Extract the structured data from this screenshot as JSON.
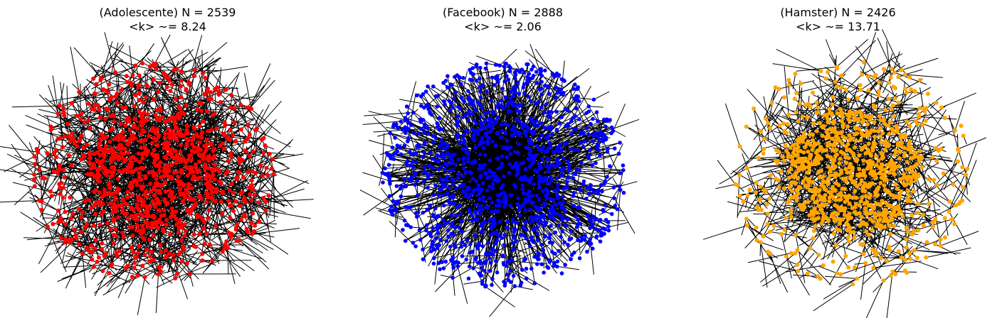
{
  "networks": [
    {
      "label": "Adolescente",
      "title_line1": "(Adolescente) N = 2539",
      "title_line2": "<k> ~= 8.24",
      "node_color": "#ff0000",
      "edge_color": "#000000"
    },
    {
      "label": "Facebook",
      "title_line1": "(Facebook) N = 2888",
      "title_line2": "<k> ~= 2.06",
      "node_color": "#0000ff",
      "edge_color": "#000000"
    },
    {
      "label": "Hamster",
      "title_line1": "(Hamster) N = 2426",
      "title_line2": "<k> ~= 13.71",
      "node_color": "#ffa500",
      "edge_color": "#000000"
    }
  ]
}
